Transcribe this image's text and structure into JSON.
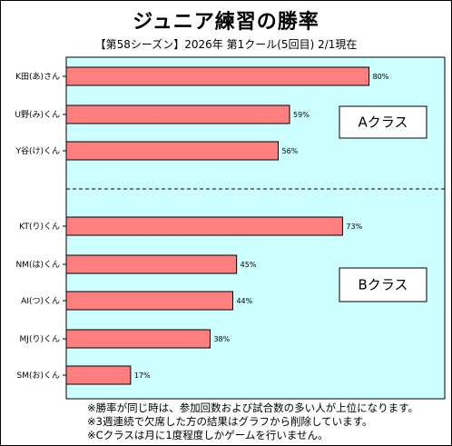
{
  "title": "ジュニア練習の勝率",
  "subtitle": "【第58シーズン】2026年 第1クール(5回目) 2/1現在",
  "chart_data": {
    "type": "bar",
    "orientation": "horizontal",
    "categories": [
      "K田(あ)さん",
      "U野(み)くん",
      "Y谷(け)くん",
      "KT(り)くん",
      "NM(は)くん",
      "AI(つ)くん",
      "MJ(り)くん",
      "SM(お)くん"
    ],
    "values": [
      80,
      59,
      56,
      73,
      45,
      44,
      38,
      17
    ],
    "value_labels": [
      "80%",
      "59%",
      "56%",
      "73%",
      "45%",
      "44%",
      "38%",
      "17%"
    ],
    "xlim": [
      0,
      100
    ],
    "groups": [
      {
        "label": "Aクラス",
        "members": [
          0,
          1,
          2
        ]
      },
      {
        "label": "Bクラス",
        "members": [
          3,
          4,
          5,
          6,
          7
        ]
      }
    ],
    "colors": {
      "plot_bg": "#ccffff",
      "bar": "#ff7f7f",
      "bar_border": "#000000",
      "divider": "#000000"
    },
    "grid": false,
    "legend": "none"
  },
  "notes": [
    "※勝率が同じ時は、参加回数および試合数の多い人が上位になります。",
    "※3週連続で欠席した方の結果はグラフから削除しています。",
    "※Cクラスは月に1度程度しかゲームを行いません。"
  ]
}
